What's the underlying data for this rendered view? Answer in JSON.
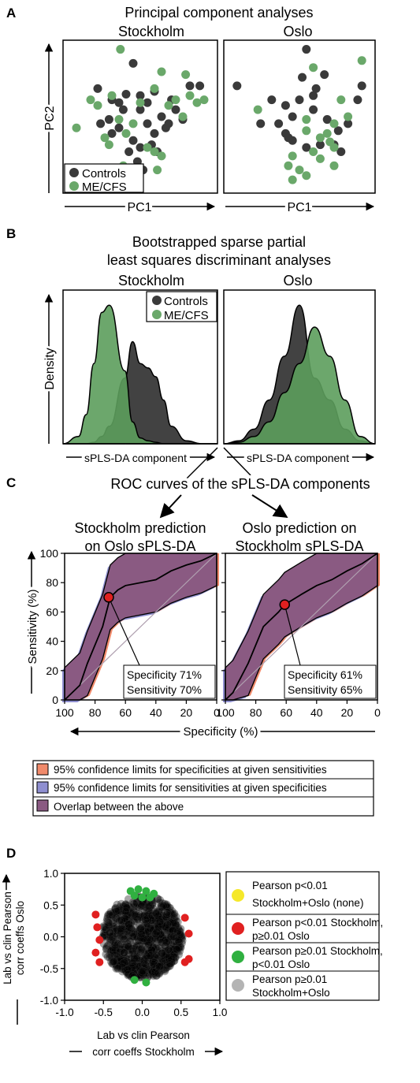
{
  "colors": {
    "control": "#3a3a3a",
    "mecfs": "#6aa86a",
    "control_fill": "#2e2e2e",
    "mecfs_fill": "#5c9d5c",
    "ci_spec": "#f08a6b",
    "ci_sens": "#8f8fd0",
    "overlap": "#8a5a82",
    "point": "#e02020",
    "p_yellow": "#f5e82a",
    "p_red": "#e02020",
    "p_green": "#30b040",
    "p_grey": "#b4b4b4"
  },
  "panel_a": {
    "letter": "A",
    "title": "Principal component analyses",
    "subtitle_left": "Stockholm",
    "subtitle_right": "Oslo",
    "xlabel": "PC1",
    "ylabel": "PC2",
    "legend": [
      "Controls",
      "ME/CFS"
    ]
  },
  "panel_b": {
    "letter": "B",
    "title_line1": "Bootstrapped sparse partial",
    "title_line2": "least squares discriminant analyses",
    "subtitle_left": "Stockholm",
    "subtitle_right": "Oslo",
    "xlabel": "sPLS-DA component",
    "ylabel": "Density",
    "legend": [
      "Controls",
      "ME/CFS"
    ]
  },
  "panel_c": {
    "letter": "C",
    "title": "ROC curves of the sPLS-DA components",
    "left_line1": "Stockholm prediction",
    "left_line2": "on Oslo sPLS-DA",
    "right_line1": "Oslo prediction on",
    "right_line2": "Stockholm sPLS-DA",
    "xlabel": "Specificity (%)",
    "ylabel": "Sensitivity (%)",
    "x_ticks": [
      "100",
      "80",
      "60",
      "40",
      "20",
      "0"
    ],
    "y_ticks": [
      "0",
      "20",
      "40",
      "60",
      "80",
      "100"
    ],
    "left_spec": "Specificity 71%",
    "left_sens": "Sensitivity 70%",
    "right_spec": "Specificity 61%",
    "right_sens": "Sensitivity 65%",
    "legend": [
      "95% confidence limits for specificities at given sensitivities",
      "95% confidence limits for sensitivities at given specificities",
      "Overlap between the above"
    ]
  },
  "panel_d": {
    "letter": "D",
    "xlabel_line1": "Lab vs clin Pearson",
    "xlabel_line2": "corr coeffs Stockholm",
    "ylabel_line1": "Lab vs clin Pearson",
    "ylabel_line2": "corr coeffs Oslo",
    "x_ticks": [
      "-1.0",
      "-0.5",
      "0.0",
      "0.5",
      "1.0"
    ],
    "y_ticks": [
      "1.0",
      "0.5",
      "0.0",
      "-0.5",
      "-1.0"
    ],
    "legend": [
      {
        "line1": "Pearson p<0.01",
        "line2": "Stockholm+Oslo (none)"
      },
      {
        "line1": "Pearson p<0.01 Stockholm,",
        "line2": "p≥0.01 Oslo"
      },
      {
        "line1": "Pearson p≥0.01 Stockholm,",
        "line2": "p<0.01 Oslo"
      },
      {
        "line1": "Pearson p≥0.01",
        "line2": "Stockholm+Oslo"
      }
    ]
  },
  "chart_data": [
    {
      "type": "scatter",
      "panel": "A-Stockholm",
      "series": [
        {
          "name": "Controls",
          "x": [
            0.45,
            0.2,
            0.3,
            0.35,
            0.4,
            0.5,
            0.55,
            0.65,
            0.7,
            0.75,
            0.8,
            0.3,
            0.35,
            0.45,
            0.5,
            0.6,
            0.62,
            0.48,
            0.55,
            0.38,
            0.28,
            0.72,
            0.42,
            0.58,
            0.5,
            0.92,
            0.85,
            0.68,
            0.52,
            0.46,
            0.22,
            0.6
          ],
          "y": [
            0.88,
            0.7,
            0.62,
            0.6,
            0.66,
            0.55,
            0.6,
            0.5,
            0.45,
            0.55,
            0.48,
            0.38,
            0.42,
            0.33,
            0.28,
            0.38,
            0.25,
            0.18,
            0.45,
            0.55,
            0.48,
            0.62,
            0.25,
            0.3,
            0.65,
            0.72,
            0.72,
            0.42,
            0.12,
            0.05,
            0.45,
            0.68
          ]
        },
        {
          "name": "ME/CFS",
          "x": [
            0.36,
            0.15,
            0.2,
            0.3,
            0.35,
            0.5,
            0.6,
            0.65,
            0.8,
            0.9,
            0.95,
            0.05,
            0.25,
            0.4,
            0.45,
            0.55,
            0.6,
            0.7,
            0.75,
            0.82,
            0.85,
            0.65,
            0.38,
            0.28,
            0.62
          ],
          "y": [
            0.98,
            0.62,
            0.58,
            0.65,
            0.48,
            0.6,
            0.7,
            0.82,
            0.5,
            0.6,
            0.62,
            0.42,
            0.35,
            0.38,
            0.45,
            0.28,
            0.25,
            0.58,
            0.62,
            0.8,
            0.65,
            0.22,
            0.15,
            0.3,
            0.12
          ]
        }
      ]
    },
    {
      "type": "scatter",
      "panel": "A-Oslo",
      "series": [
        {
          "name": "Controls",
          "x": [
            0.55,
            0.05,
            0.3,
            0.4,
            0.45,
            0.5,
            0.6,
            0.7,
            0.85,
            0.92,
            0.78,
            0.4,
            0.45,
            0.55,
            0.65,
            0.75,
            0.8,
            0.35,
            0.22,
            0.6,
            0.68,
            0.52,
            0.95,
            0.42,
            0.62
          ],
          "y": [
            0.98,
            0.72,
            0.62,
            0.58,
            0.5,
            0.62,
            0.55,
            0.48,
            0.45,
            0.62,
            0.4,
            0.38,
            0.33,
            0.28,
            0.3,
            0.3,
            0.25,
            0.45,
            0.45,
            0.65,
            0.8,
            0.78,
            0.72,
            0.35,
            0.7
          ]
        },
        {
          "name": "ME/CFS",
          "x": [
            0.95,
            0.2,
            0.55,
            0.55,
            0.65,
            0.7,
            0.75,
            0.8,
            0.85,
            0.6,
            0.65,
            0.75,
            0.5,
            0.55,
            0.75,
            0.45,
            0.42,
            0.72,
            0.6,
            0.45
          ],
          "y": [
            0.9,
            0.55,
            0.48,
            0.4,
            0.35,
            0.38,
            0.45,
            0.62,
            0.5,
            0.25,
            0.2,
            0.15,
            0.12,
            0.08,
            0.28,
            0.05,
            0.15,
            0.32,
            0.85,
            0.22
          ]
        }
      ]
    },
    {
      "type": "area",
      "panel": "B-Stockholm",
      "x": [
        0,
        0.1,
        0.15,
        0.2,
        0.25,
        0.3,
        0.4,
        0.45,
        0.5,
        0.55,
        0.6,
        0.65,
        0.7,
        0.8,
        0.9,
        1
      ],
      "series": [
        {
          "name": "Controls",
          "values": [
            0,
            0,
            0,
            0.01,
            0.05,
            0.12,
            0.45,
            0.7,
            0.55,
            0.52,
            0.46,
            0.3,
            0.12,
            0.02,
            0,
            0
          ]
        },
        {
          "name": "ME/CFS",
          "values": [
            0,
            0.05,
            0.2,
            0.55,
            0.9,
            0.95,
            0.5,
            0.15,
            0.04,
            0.02,
            0.01,
            0,
            0,
            0,
            0,
            0
          ]
        }
      ]
    },
    {
      "type": "area",
      "panel": "B-Oslo",
      "x": [
        0,
        0.1,
        0.2,
        0.3,
        0.4,
        0.5,
        0.6,
        0.7,
        0.8,
        0.9,
        1
      ],
      "series": [
        {
          "name": "Controls",
          "values": [
            0,
            0.02,
            0.1,
            0.3,
            0.6,
            0.95,
            0.45,
            0.3,
            0.1,
            0.02,
            0
          ]
        },
        {
          "name": "ME/CFS",
          "values": [
            0,
            0.01,
            0.05,
            0.15,
            0.35,
            0.55,
            0.8,
            0.6,
            0.3,
            0.05,
            0
          ]
        }
      ]
    },
    {
      "type": "line",
      "panel": "C-left",
      "xlabel": "Specificity (%)",
      "ylabel": "Sensitivity (%)",
      "xlim": [
        100,
        0
      ],
      "ylim": [
        0,
        100
      ],
      "point": {
        "specificity": 71,
        "sensitivity": 70
      },
      "roc": {
        "x": [
          100,
          90,
          85,
          75,
          70,
          65,
          60,
          40,
          30,
          20,
          10,
          0
        ],
        "y": [
          0,
          10,
          25,
          50,
          70,
          75,
          78,
          82,
          88,
          92,
          95,
          100
        ]
      }
    },
    {
      "type": "line",
      "panel": "C-right",
      "xlabel": "Specificity (%)",
      "ylabel": "Sensitivity (%)",
      "xlim": [
        100,
        0
      ],
      "ylim": [
        0,
        100
      ],
      "point": {
        "specificity": 61,
        "sensitivity": 65
      },
      "roc": {
        "x": [
          100,
          95,
          85,
          75,
          65,
          61,
          50,
          40,
          30,
          20,
          10,
          0
        ],
        "y": [
          0,
          5,
          25,
          50,
          60,
          65,
          72,
          78,
          82,
          88,
          93,
          100
        ]
      }
    },
    {
      "type": "scatter",
      "panel": "D",
      "xlabel": "Lab vs clin Pearson corr coeffs Stockholm",
      "ylabel": "Lab vs clin Pearson corr coeffs Oslo",
      "xlim": [
        -1,
        1
      ],
      "ylim": [
        -1,
        1
      ],
      "series": [
        {
          "name": "Pearson p<0.01 Stockholm, p≥0.01 Oslo",
          "x": [
            -0.6,
            -0.58,
            -0.55,
            -0.6,
            -0.55,
            0.55,
            0.6,
            0.6,
            0.55
          ],
          "y": [
            0.35,
            0.15,
            -0.05,
            -0.25,
            -0.4,
            0.3,
            0.05,
            -0.35,
            -0.4
          ]
        },
        {
          "name": "Pearson p≥0.01 Stockholm, p<0.01 Oslo",
          "x": [
            -0.15,
            -0.05,
            0.05,
            0.15,
            -0.1,
            0.0,
            0.1,
            -0.1,
            0.05
          ],
          "y": [
            0.72,
            0.75,
            0.72,
            0.68,
            0.65,
            0.62,
            0.62,
            -0.68,
            -0.72
          ]
        },
        {
          "name": "Pearson p≥0.01 Stockholm+Oslo",
          "x": [
            0
          ],
          "y": [
            0
          ]
        }
      ]
    }
  ]
}
